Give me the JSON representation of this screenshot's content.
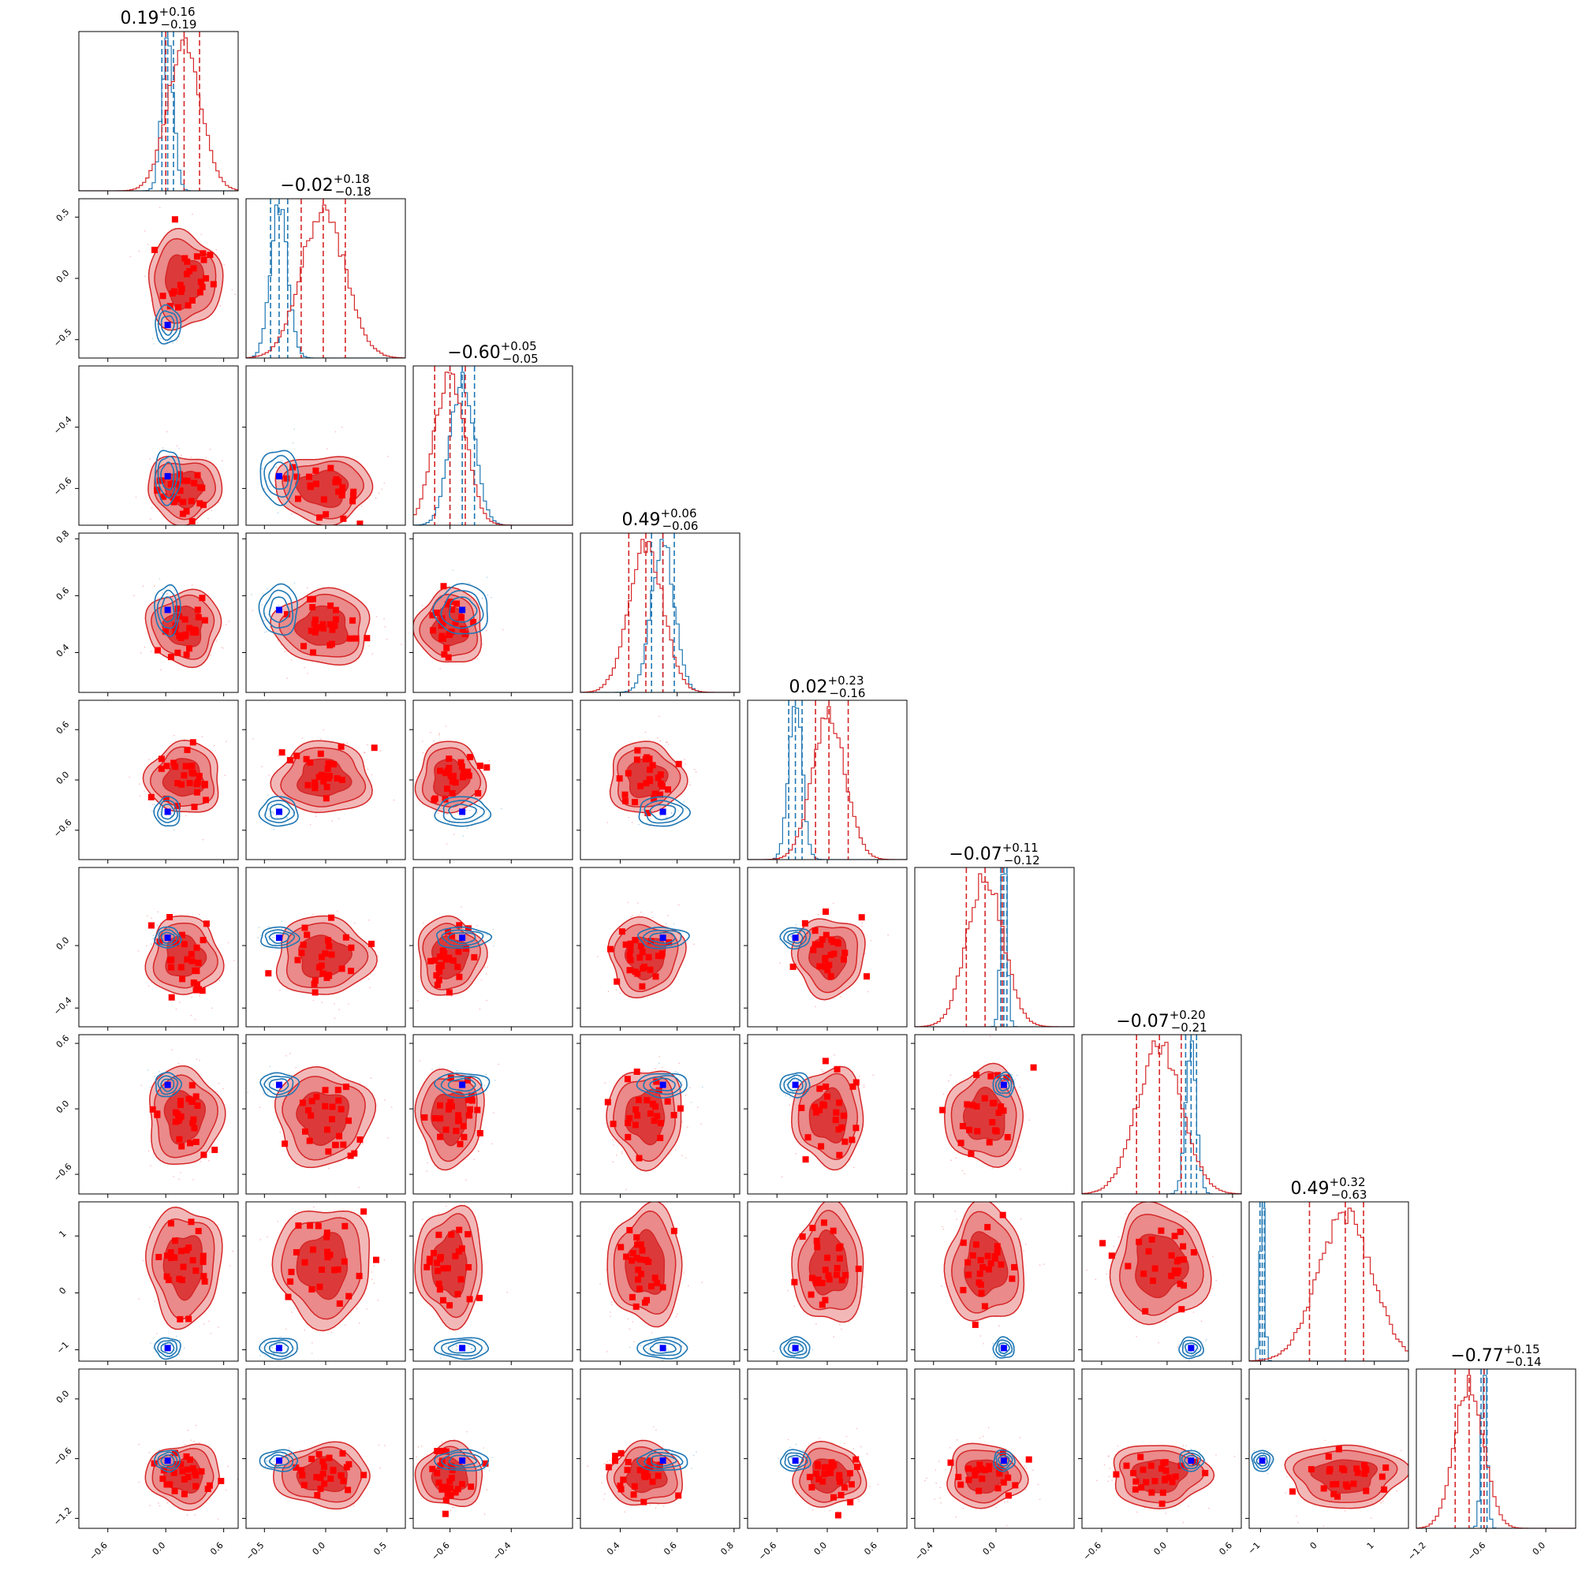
{
  "chart_data": {
    "type": "corner",
    "n_params": 9,
    "titles": [
      {
        "median": "0.19",
        "plus": "+0.16",
        "minus": "−0.19"
      },
      {
        "median": "−0.02",
        "plus": "+0.18",
        "minus": "−0.18"
      },
      {
        "median": "−0.60",
        "plus": "+0.05",
        "minus": "−0.05"
      },
      {
        "median": "0.49",
        "plus": "+0.06",
        "minus": "−0.06"
      },
      {
        "median": "0.02",
        "plus": "+0.23",
        "minus": "−0.16"
      },
      {
        "median": "−0.07",
        "plus": "+0.11",
        "minus": "−0.12"
      },
      {
        "median": "−0.07",
        "plus": "+0.20",
        "minus": "−0.21"
      },
      {
        "median": "0.49",
        "plus": "+0.32",
        "minus": "−0.63"
      },
      {
        "median": "−0.77",
        "plus": "+0.15",
        "minus": "−0.14"
      }
    ],
    "ranges": [
      [
        -0.9,
        0.75
      ],
      [
        -0.65,
        0.65
      ],
      [
        -0.72,
        -0.2
      ],
      [
        0.26,
        0.82
      ],
      [
        -0.95,
        0.95
      ],
      [
        -0.52,
        0.5
      ],
      [
        -0.78,
        0.68
      ],
      [
        -1.2,
        1.6
      ],
      [
        -1.3,
        0.3
      ]
    ],
    "x_ticks": [
      [
        "−0.6",
        "0.0",
        "0.6"
      ],
      [
        "−0.5",
        "0.0",
        "0.5"
      ],
      [
        "−0.6",
        "−0.4"
      ],
      [
        "0.4",
        "0.6",
        "0.8"
      ],
      [
        "−0.6",
        "0.0",
        "0.6"
      ],
      [
        "−0.4",
        "0.0"
      ],
      [
        "−0.6",
        "0.0",
        "0.6"
      ],
      [
        "−1",
        "0",
        "1"
      ],
      [
        "−1.2",
        "−0.6",
        "0.0"
      ]
    ],
    "x_tick_values": [
      [
        -0.6,
        0.0,
        0.6
      ],
      [
        -0.5,
        0.0,
        0.5
      ],
      [
        -0.6,
        -0.4
      ],
      [
        0.4,
        0.6,
        0.8
      ],
      [
        -0.6,
        0.0,
        0.6
      ],
      [
        -0.4,
        0.0
      ],
      [
        -0.6,
        0.0,
        0.6
      ],
      [
        -1,
        0,
        1
      ],
      [
        -1.2,
        -0.6,
        0.0
      ]
    ],
    "y_ticks": [
      null,
      [
        "0.5",
        "0.0",
        "−0.5"
      ],
      [
        "−0.4",
        "−0.6"
      ],
      [
        "0.8",
        "0.6",
        "0.4"
      ],
      [
        "0.6",
        "0.0",
        "−0.6"
      ],
      [
        "0.0",
        "−0.4"
      ],
      [
        "0.6",
        "0.0",
        "−0.6"
      ],
      [
        "1",
        "0",
        "−1"
      ],
      [
        "0.0",
        "−0.6",
        "−1.2"
      ]
    ],
    "y_tick_values": [
      null,
      [
        0.5,
        0.0,
        -0.5
      ],
      [
        -0.4,
        -0.6
      ],
      [
        0.8,
        0.6,
        0.4
      ],
      [
        0.6,
        0.0,
        -0.6
      ],
      [
        0.0,
        -0.4
      ],
      [
        0.6,
        0.0,
        -0.6
      ],
      [
        1,
        0,
        -1
      ],
      [
        0.0,
        -0.6,
        -1.2
      ]
    ],
    "red": {
      "color": "#d62728",
      "center": [
        0.19,
        -0.02,
        -0.6,
        0.49,
        0.02,
        -0.07,
        -0.07,
        0.49,
        -0.77
      ],
      "minus": [
        0.19,
        0.18,
        0.05,
        0.06,
        0.16,
        0.12,
        0.21,
        0.63,
        0.14
      ],
      "plus": [
        0.16,
        0.18,
        0.05,
        0.06,
        0.23,
        0.11,
        0.2,
        0.32,
        0.15
      ]
    },
    "blue": {
      "color": "#1f77b4",
      "center": [
        0.02,
        -0.38,
        -0.56,
        0.55,
        -0.38,
        0.05,
        0.22,
        -0.97,
        -0.62
      ],
      "minus": [
        0.06,
        0.07,
        0.04,
        0.04,
        0.08,
        0.02,
        0.05,
        0.04,
        0.03
      ],
      "plus": [
        0.06,
        0.07,
        0.04,
        0.04,
        0.08,
        0.02,
        0.05,
        0.04,
        0.03
      ]
    },
    "true_marker_color": "#0000ff",
    "scatter_marker_color": "#ff0000"
  }
}
